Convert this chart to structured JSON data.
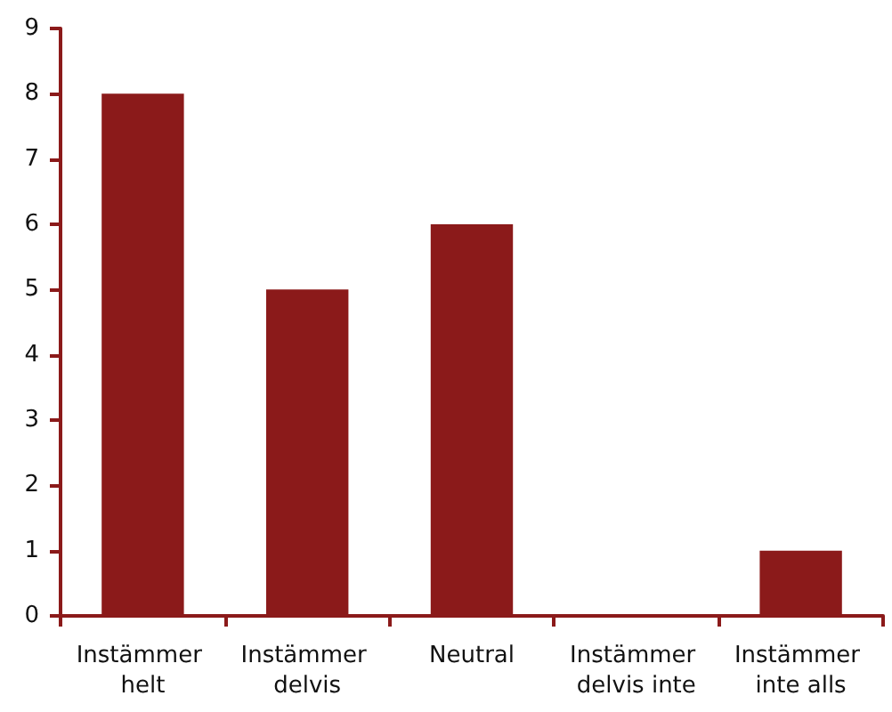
{
  "chart_data": {
    "type": "bar",
    "categories": [
      "Instämmer helt",
      "Instämmer delvis",
      "Neutral",
      "Instämmer delvis inte",
      "Instämmer inte alls"
    ],
    "values": [
      8,
      5,
      6,
      0,
      1
    ],
    "color": "#8b1a1a",
    "ylim": [
      0,
      9
    ],
    "yticks": [
      0,
      1,
      2,
      3,
      4,
      5,
      6,
      7,
      8,
      9
    ]
  }
}
